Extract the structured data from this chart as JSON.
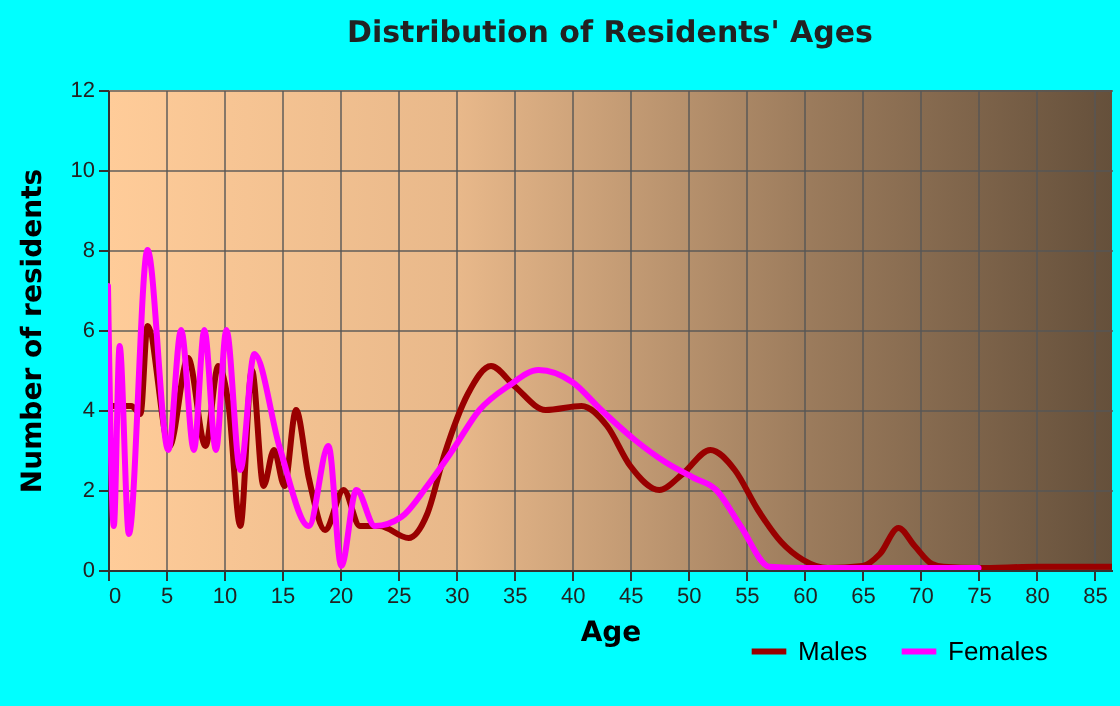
{
  "chart_data": {
    "type": "line",
    "title": "Distribution of Residents' Ages",
    "xlabel": "Age",
    "ylabel": "Number of residents",
    "xlim": [
      0,
      86.5
    ],
    "xticks": [
      0,
      5,
      10,
      15,
      20,
      25,
      30,
      35,
      40,
      45,
      50,
      55,
      60,
      65,
      70,
      75,
      80,
      85
    ],
    "ylim": [
      0,
      12
    ],
    "yticks": [
      0,
      2,
      4,
      6,
      8,
      10,
      12
    ],
    "grid": true,
    "legend": "bottom right",
    "marker": "none",
    "line_style": "solid",
    "series": [
      {
        "name": "Males",
        "color": "#990000",
        "x": [
          0,
          1,
          2,
          2.8,
          3.4,
          5.3,
          6.9,
          8.4,
          9.5,
          10.4,
          11.4,
          12.4,
          13.4,
          14.3,
          15.2,
          16.2,
          17.3,
          18.7,
          20.3,
          21.7,
          23.4,
          25.9,
          27.5,
          29,
          31,
          33,
          35,
          37.7,
          40.8,
          43,
          45,
          47.5,
          49.5,
          51.9,
          54,
          56,
          58,
          59.9,
          62,
          65,
          66.5,
          68.1,
          69.5,
          71,
          72,
          75,
          80,
          86.5
        ],
        "values": [
          4.1,
          4.1,
          4.1,
          3.9,
          6.1,
          3.1,
          5.3,
          3.1,
          5.1,
          4.1,
          1.1,
          5.0,
          2.1,
          3.0,
          2.1,
          4.0,
          2.3,
          1.0,
          2.0,
          1.1,
          1.1,
          0.8,
          1.4,
          2.9,
          4.4,
          5.1,
          4.6,
          4.0,
          4.1,
          3.6,
          2.6,
          2.0,
          2.4,
          3.0,
          2.5,
          1.5,
          0.7,
          0.25,
          0.05,
          0.1,
          0.4,
          1.05,
          0.6,
          0.15,
          0.08,
          0.05,
          0.08,
          0.08
        ]
      },
      {
        "name": "Females",
        "color": "#ff00ff",
        "x": [
          0,
          0.5,
          1,
          1.8,
          3.4,
          5.2,
          6.3,
          7.4,
          8.3,
          9.3,
          10.2,
          11.4,
          12.6,
          14.8,
          17.3,
          19,
          20.1,
          21.4,
          23,
          25.3,
          27.5,
          29.7,
          32,
          34.5,
          37.1,
          40,
          42.5,
          45.4,
          48,
          50.5,
          52.4,
          54.5,
          57,
          60,
          65,
          70,
          75
        ],
        "values": [
          7.1,
          1.1,
          5.6,
          0.9,
          8.0,
          3.0,
          6.0,
          3.0,
          6.0,
          3.0,
          6.0,
          2.5,
          5.4,
          3.05,
          1.1,
          3.1,
          0.1,
          2.0,
          1.1,
          1.33,
          2.1,
          3.0,
          4.0,
          4.6,
          5.0,
          4.7,
          4.0,
          3.25,
          2.7,
          2.3,
          2.0,
          1.1,
          0.08,
          0.05,
          0.05,
          0.05,
          0.05
        ]
      }
    ]
  }
}
